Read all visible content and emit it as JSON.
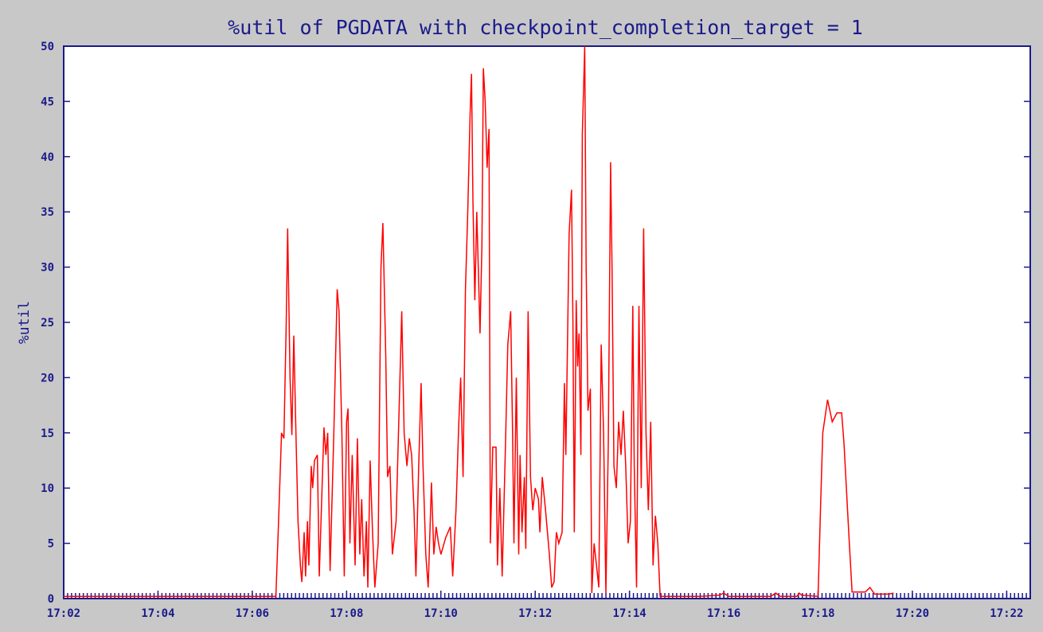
{
  "chart_data": {
    "type": "line",
    "title": "%util of PGDATA with checkpoint_completion_target = 1",
    "xlabel": "",
    "ylabel": "%util",
    "ylim": [
      0,
      50
    ],
    "yticks": [
      0,
      5,
      10,
      15,
      20,
      25,
      30,
      35,
      40,
      45,
      50
    ],
    "xlim_minutes": [
      1022,
      1042.5
    ],
    "xtick_labels": [
      "17:02",
      "17:04",
      "17:06",
      "17:08",
      "17:10",
      "17:12",
      "17:14",
      "17:16",
      "17:18",
      "17:20",
      "17:22"
    ],
    "xtick_minutes": [
      1022,
      1024,
      1026,
      1028,
      1030,
      1032,
      1034,
      1036,
      1038,
      1040,
      1042
    ],
    "grid": false,
    "colors": {
      "background": "#c8c8c8",
      "plot_area": "#ffffff",
      "axis": "#1a1a8c",
      "series": "#ff0000"
    },
    "series": [
      {
        "color": "#ff0000",
        "points": [
          [
            1022.0,
            0.2
          ],
          [
            1026.0,
            0.2
          ],
          [
            1026.5,
            0.2
          ],
          [
            1026.55,
            6
          ],
          [
            1026.62,
            15
          ],
          [
            1026.67,
            14.5
          ],
          [
            1026.72,
            25
          ],
          [
            1026.75,
            33.5
          ],
          [
            1026.8,
            20
          ],
          [
            1026.84,
            14.8
          ],
          [
            1026.88,
            23.8
          ],
          [
            1026.93,
            14
          ],
          [
            1026.97,
            7
          ],
          [
            1027.02,
            3
          ],
          [
            1027.05,
            1.5
          ],
          [
            1027.1,
            6
          ],
          [
            1027.13,
            2
          ],
          [
            1027.17,
            7
          ],
          [
            1027.2,
            3
          ],
          [
            1027.25,
            12
          ],
          [
            1027.28,
            10
          ],
          [
            1027.32,
            12.5
          ],
          [
            1027.38,
            13
          ],
          [
            1027.42,
            2
          ],
          [
            1027.48,
            10
          ],
          [
            1027.52,
            15.5
          ],
          [
            1027.56,
            13
          ],
          [
            1027.6,
            15
          ],
          [
            1027.65,
            2.5
          ],
          [
            1027.73,
            15
          ],
          [
            1027.8,
            28
          ],
          [
            1027.84,
            26
          ],
          [
            1027.9,
            15
          ],
          [
            1027.95,
            2
          ],
          [
            1028.0,
            16
          ],
          [
            1028.03,
            17.2
          ],
          [
            1028.07,
            5
          ],
          [
            1028.12,
            13
          ],
          [
            1028.18,
            3
          ],
          [
            1028.23,
            14.5
          ],
          [
            1028.28,
            4
          ],
          [
            1028.32,
            9
          ],
          [
            1028.37,
            2
          ],
          [
            1028.42,
            7
          ],
          [
            1028.45,
            1
          ],
          [
            1028.5,
            12.5
          ],
          [
            1028.55,
            6
          ],
          [
            1028.6,
            1
          ],
          [
            1028.67,
            5
          ],
          [
            1028.73,
            30
          ],
          [
            1028.77,
            34
          ],
          [
            1028.83,
            22
          ],
          [
            1028.87,
            11
          ],
          [
            1028.92,
            12
          ],
          [
            1028.97,
            4
          ],
          [
            1029.05,
            7
          ],
          [
            1029.12,
            18
          ],
          [
            1029.17,
            26
          ],
          [
            1029.22,
            15
          ],
          [
            1029.28,
            12
          ],
          [
            1029.33,
            14.5
          ],
          [
            1029.38,
            13
          ],
          [
            1029.43,
            8
          ],
          [
            1029.47,
            2
          ],
          [
            1029.53,
            12
          ],
          [
            1029.58,
            19.5
          ],
          [
            1029.62,
            12
          ],
          [
            1029.68,
            4
          ],
          [
            1029.73,
            1
          ],
          [
            1029.8,
            10.5
          ],
          [
            1029.85,
            4
          ],
          [
            1029.9,
            6.5
          ],
          [
            1029.95,
            5
          ],
          [
            1030.0,
            4
          ],
          [
            1030.1,
            5.5
          ],
          [
            1030.2,
            6.5
          ],
          [
            1030.25,
            2
          ],
          [
            1030.32,
            8
          ],
          [
            1030.38,
            16
          ],
          [
            1030.42,
            20
          ],
          [
            1030.47,
            11
          ],
          [
            1030.52,
            28
          ],
          [
            1030.57,
            35
          ],
          [
            1030.62,
            44
          ],
          [
            1030.65,
            47.5
          ],
          [
            1030.68,
            36
          ],
          [
            1030.72,
            27
          ],
          [
            1030.76,
            35
          ],
          [
            1030.8,
            29
          ],
          [
            1030.83,
            24
          ],
          [
            1030.87,
            32
          ],
          [
            1030.9,
            48
          ],
          [
            1030.94,
            45
          ],
          [
            1030.98,
            39
          ],
          [
            1031.02,
            42.5
          ],
          [
            1031.05,
            5
          ],
          [
            1031.1,
            13.7
          ],
          [
            1031.17,
            13.7
          ],
          [
            1031.2,
            3
          ],
          [
            1031.25,
            10
          ],
          [
            1031.3,
            2
          ],
          [
            1031.37,
            14
          ],
          [
            1031.42,
            23
          ],
          [
            1031.48,
            26
          ],
          [
            1031.52,
            15
          ],
          [
            1031.55,
            5
          ],
          [
            1031.6,
            20
          ],
          [
            1031.65,
            4
          ],
          [
            1031.68,
            13
          ],
          [
            1031.72,
            6
          ],
          [
            1031.77,
            11
          ],
          [
            1031.8,
            4.5
          ],
          [
            1031.85,
            26
          ],
          [
            1031.9,
            11
          ],
          [
            1031.95,
            8
          ],
          [
            1032.0,
            10
          ],
          [
            1032.07,
            9
          ],
          [
            1032.1,
            6
          ],
          [
            1032.15,
            11
          ],
          [
            1032.22,
            8
          ],
          [
            1032.3,
            4
          ],
          [
            1032.35,
            1
          ],
          [
            1032.4,
            1.5
          ],
          [
            1032.45,
            6
          ],
          [
            1032.5,
            5
          ],
          [
            1032.57,
            6
          ],
          [
            1032.62,
            19.5
          ],
          [
            1032.65,
            13
          ],
          [
            1032.72,
            33
          ],
          [
            1032.77,
            37
          ],
          [
            1032.8,
            25
          ],
          [
            1032.83,
            6
          ],
          [
            1032.87,
            27
          ],
          [
            1032.9,
            21
          ],
          [
            1032.93,
            24
          ],
          [
            1032.97,
            13
          ],
          [
            1033.0,
            42
          ],
          [
            1033.05,
            50
          ],
          [
            1033.08,
            30
          ],
          [
            1033.12,
            17
          ],
          [
            1033.17,
            19
          ],
          [
            1033.2,
            0.5
          ],
          [
            1033.25,
            5
          ],
          [
            1033.3,
            3
          ],
          [
            1033.35,
            1
          ],
          [
            1033.4,
            23
          ],
          [
            1033.45,
            15
          ],
          [
            1033.5,
            0.5
          ],
          [
            1033.55,
            14
          ],
          [
            1033.6,
            39.5
          ],
          [
            1033.63,
            30
          ],
          [
            1033.67,
            12
          ],
          [
            1033.72,
            10
          ],
          [
            1033.77,
            16
          ],
          [
            1033.82,
            13
          ],
          [
            1033.87,
            17
          ],
          [
            1033.92,
            12
          ],
          [
            1033.97,
            5
          ],
          [
            1034.02,
            7
          ],
          [
            1034.07,
            26.5
          ],
          [
            1034.1,
            12
          ],
          [
            1034.15,
            1
          ],
          [
            1034.2,
            26.5
          ],
          [
            1034.25,
            10
          ],
          [
            1034.3,
            33.5
          ],
          [
            1034.35,
            15
          ],
          [
            1034.4,
            8
          ],
          [
            1034.45,
            16
          ],
          [
            1034.5,
            3
          ],
          [
            1034.55,
            7.5
          ],
          [
            1034.6,
            5
          ],
          [
            1034.65,
            0.2
          ],
          [
            1035.0,
            0.2
          ],
          [
            1035.5,
            0.2
          ],
          [
            1035.9,
            0.3
          ],
          [
            1036.0,
            0.5
          ],
          [
            1036.1,
            0.2
          ],
          [
            1036.5,
            0.2
          ],
          [
            1037.0,
            0.2
          ],
          [
            1037.1,
            0.5
          ],
          [
            1037.2,
            0.2
          ],
          [
            1037.55,
            0.2
          ],
          [
            1037.6,
            0.5
          ],
          [
            1037.65,
            0.3
          ],
          [
            1038.0,
            0.2
          ],
          [
            1038.05,
            8
          ],
          [
            1038.1,
            15
          ],
          [
            1038.2,
            18
          ],
          [
            1038.3,
            16
          ],
          [
            1038.4,
            16.8
          ],
          [
            1038.5,
            16.8
          ],
          [
            1038.55,
            14
          ],
          [
            1038.65,
            6
          ],
          [
            1038.72,
            0.6
          ],
          [
            1039.0,
            0.6
          ],
          [
            1039.1,
            1
          ],
          [
            1039.2,
            0.4
          ],
          [
            1039.5,
            0.4
          ],
          [
            1039.6,
            0.5
          ]
        ]
      }
    ]
  }
}
